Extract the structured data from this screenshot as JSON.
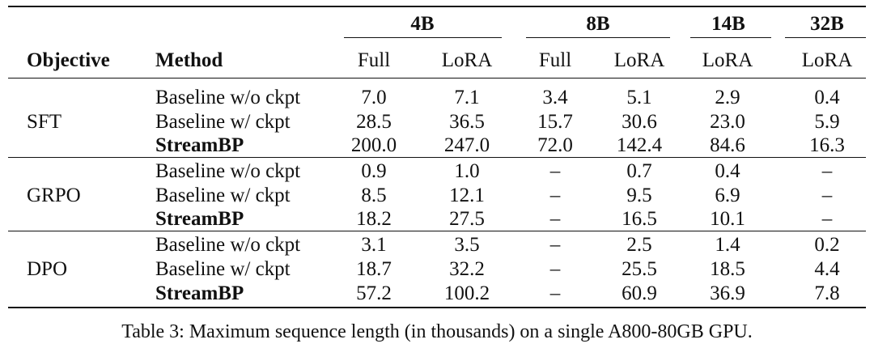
{
  "table": {
    "header": {
      "groups": [
        {
          "label": "4B"
        },
        {
          "label": "8B"
        },
        {
          "label": "14B"
        },
        {
          "label": "32B"
        }
      ],
      "objective_label": "Objective",
      "method_label": "Method",
      "sub_columns": [
        "Full",
        "LoRA",
        "Full",
        "LoRA",
        "LoRA",
        "LoRA"
      ]
    },
    "sections": [
      {
        "objective": "SFT",
        "rows": [
          {
            "method": "Baseline w/o ckpt",
            "bold": false,
            "values": [
              "7.0",
              "7.1",
              "3.4",
              "5.1",
              "2.9",
              "0.4"
            ]
          },
          {
            "method": "Baseline w/ ckpt",
            "bold": false,
            "values": [
              "28.5",
              "36.5",
              "15.7",
              "30.6",
              "23.0",
              "5.9"
            ]
          },
          {
            "method": "StreamBP",
            "bold": true,
            "values": [
              "200.0",
              "247.0",
              "72.0",
              "142.4",
              "84.6",
              "16.3"
            ]
          }
        ]
      },
      {
        "objective": "GRPO",
        "rows": [
          {
            "method": "Baseline w/o ckpt",
            "bold": false,
            "values": [
              "0.9",
              "1.0",
              "–",
              "0.7",
              "0.4",
              "–"
            ]
          },
          {
            "method": "Baseline w/ ckpt",
            "bold": false,
            "values": [
              "8.5",
              "12.1",
              "–",
              "9.5",
              "6.9",
              "–"
            ]
          },
          {
            "method": "StreamBP",
            "bold": true,
            "values": [
              "18.2",
              "27.5",
              "–",
              "16.5",
              "10.1",
              "–"
            ]
          }
        ]
      },
      {
        "objective": "DPO",
        "rows": [
          {
            "method": "Baseline w/o ckpt",
            "bold": false,
            "values": [
              "3.1",
              "3.5",
              "–",
              "2.5",
              "1.4",
              "0.2"
            ]
          },
          {
            "method": "Baseline w/ ckpt",
            "bold": false,
            "values": [
              "18.7",
              "32.2",
              "–",
              "25.5",
              "18.5",
              "4.4"
            ]
          },
          {
            "method": "StreamBP",
            "bold": true,
            "values": [
              "57.2",
              "100.2",
              "–",
              "60.9",
              "36.9",
              "7.8"
            ]
          }
        ]
      }
    ]
  },
  "caption": "Table 3: Maximum sequence length (in thousands) on a single A800-80GB GPU."
}
